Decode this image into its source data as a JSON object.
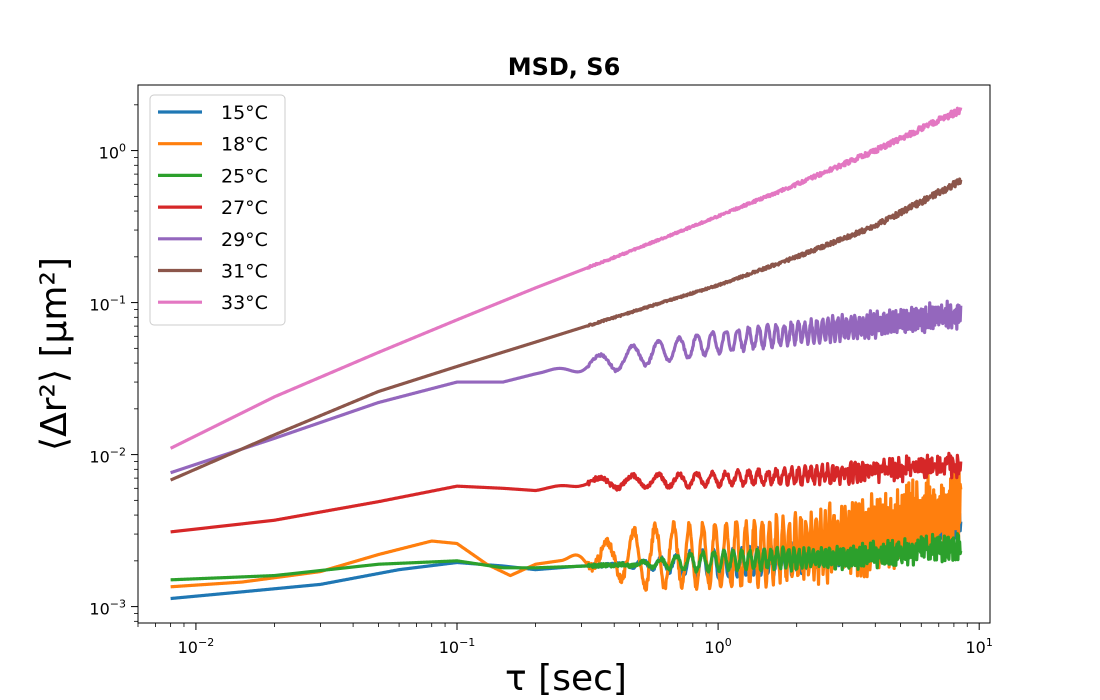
{
  "chart_data": {
    "type": "line",
    "title": "MSD, S6",
    "xlabel": "τ [sec]",
    "ylabel": "⟨Δr²⟩ [μm²]",
    "xscale": "log",
    "yscale": "log",
    "xlim": [
      0.006,
      11
    ],
    "ylim": [
      0.00078,
      2.7
    ],
    "x_ticks": [
      {
        "value": 0.01,
        "base": "10",
        "exp": "−2"
      },
      {
        "value": 0.1,
        "base": "10",
        "exp": "−1"
      },
      {
        "value": 1,
        "base": "10",
        "exp": "0"
      },
      {
        "value": 10,
        "base": "10",
        "exp": "1"
      }
    ],
    "y_ticks": [
      {
        "value": 0.001,
        "base": "10",
        "exp": "−3"
      },
      {
        "value": 0.01,
        "base": "10",
        "exp": "−2"
      },
      {
        "value": 0.1,
        "base": "10",
        "exp": "−1"
      },
      {
        "value": 1,
        "base": "10",
        "exp": "0"
      }
    ],
    "grid": false,
    "legend_position": "upper-left",
    "x_start": 0.008,
    "x_end": 8.5,
    "series": [
      {
        "name": "15°C",
        "color": "#1f77b4",
        "points": [
          [
            0.008,
            0.00113
          ],
          [
            0.015,
            0.00125
          ],
          [
            0.03,
            0.0014
          ],
          [
            0.06,
            0.00175
          ],
          [
            0.1,
            0.00195
          ],
          [
            0.15,
            0.00185
          ],
          [
            0.2,
            0.00175
          ],
          [
            0.3,
            0.00185
          ],
          [
            0.5,
            0.0019
          ],
          [
            1,
            0.0019
          ],
          [
            2,
            0.0021
          ],
          [
            4,
            0.0026
          ],
          [
            8.5,
            0.0034
          ]
        ],
        "osc_amp": 0.09,
        "osc_start": 0.4,
        "osc_period": 0.09,
        "noise": 0.012
      },
      {
        "name": "18°C",
        "color": "#ff7f0e",
        "points": [
          [
            0.008,
            0.00135
          ],
          [
            0.015,
            0.00145
          ],
          [
            0.03,
            0.0017
          ],
          [
            0.05,
            0.0022
          ],
          [
            0.08,
            0.0027
          ],
          [
            0.1,
            0.0026
          ],
          [
            0.13,
            0.0019
          ],
          [
            0.16,
            0.0016
          ],
          [
            0.2,
            0.0019
          ],
          [
            0.3,
            0.0021
          ],
          [
            0.5,
            0.0021
          ],
          [
            1,
            0.0022
          ],
          [
            2,
            0.0024
          ],
          [
            4,
            0.003
          ],
          [
            8.5,
            0.0046
          ]
        ],
        "osc_amp": 0.2,
        "osc_start": 0.25,
        "osc_period": 0.1,
        "noise": 0.03
      },
      {
        "name": "25°C",
        "color": "#2ca02c",
        "points": [
          [
            0.008,
            0.0015
          ],
          [
            0.02,
            0.0016
          ],
          [
            0.05,
            0.0019
          ],
          [
            0.1,
            0.002
          ],
          [
            0.15,
            0.0018
          ],
          [
            0.2,
            0.0018
          ],
          [
            0.5,
            0.0019
          ],
          [
            1,
            0.002
          ],
          [
            3,
            0.0021
          ],
          [
            8.5,
            0.0025
          ]
        ],
        "osc_amp": 0.06,
        "osc_start": 0.4,
        "osc_period": 0.09,
        "noise": 0.012
      },
      {
        "name": "27°C",
        "color": "#d62728",
        "points": [
          [
            0.008,
            0.0031
          ],
          [
            0.02,
            0.0037
          ],
          [
            0.05,
            0.0049
          ],
          [
            0.1,
            0.0062
          ],
          [
            0.15,
            0.006
          ],
          [
            0.2,
            0.0058
          ],
          [
            0.3,
            0.0065
          ],
          [
            1,
            0.0069
          ],
          [
            3,
            0.0075
          ],
          [
            8.5,
            0.0087
          ]
        ],
        "osc_amp": 0.04,
        "osc_start": 0.2,
        "osc_period": 0.12,
        "noise": 0.015
      },
      {
        "name": "29°C",
        "color": "#9467bd",
        "points": [
          [
            0.008,
            0.0076
          ],
          [
            0.02,
            0.0128
          ],
          [
            0.05,
            0.022
          ],
          [
            0.1,
            0.03
          ],
          [
            0.15,
            0.03
          ],
          [
            0.2,
            0.034
          ],
          [
            0.3,
            0.038
          ],
          [
            0.5,
            0.045
          ],
          [
            1,
            0.055
          ],
          [
            2,
            0.063
          ],
          [
            4,
            0.072
          ],
          [
            8.5,
            0.083
          ]
        ],
        "osc_amp": 0.07,
        "osc_start": 0.2,
        "osc_period": 0.12,
        "noise": 0.01
      },
      {
        "name": "31°C",
        "color": "#8c564b",
        "points": [
          [
            0.008,
            0.0068
          ],
          [
            0.02,
            0.0135
          ],
          [
            0.05,
            0.026
          ],
          [
            0.1,
            0.038
          ],
          [
            0.2,
            0.055
          ],
          [
            0.5,
            0.09
          ],
          [
            1,
            0.13
          ],
          [
            2,
            0.2
          ],
          [
            4,
            0.32
          ],
          [
            8.5,
            0.63
          ]
        ],
        "osc_amp": 0.0,
        "osc_start": 1,
        "osc_period": 0.1,
        "noise": 0.006
      },
      {
        "name": "33°C",
        "color": "#e377c2",
        "points": [
          [
            0.008,
            0.011
          ],
          [
            0.02,
            0.024
          ],
          [
            0.05,
            0.047
          ],
          [
            0.1,
            0.077
          ],
          [
            0.2,
            0.125
          ],
          [
            0.5,
            0.23
          ],
          [
            1,
            0.37
          ],
          [
            2,
            0.6
          ],
          [
            4,
            1.0
          ],
          [
            8.5,
            1.85
          ]
        ],
        "osc_amp": 0.0,
        "osc_start": 1,
        "osc_period": 0.1,
        "noise": 0.006
      }
    ]
  }
}
